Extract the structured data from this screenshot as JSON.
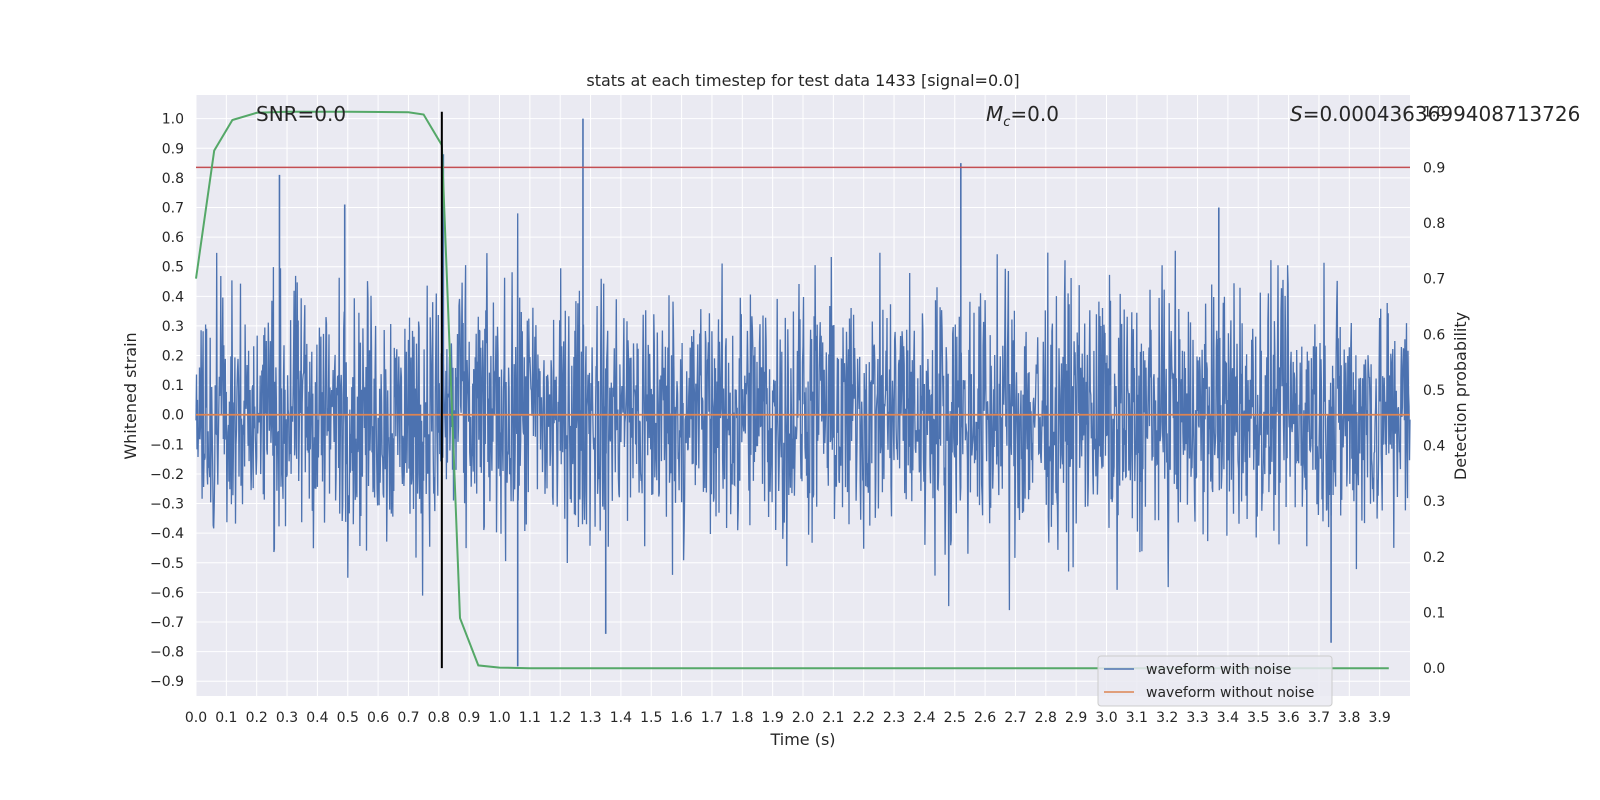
{
  "chart_data": {
    "type": "line",
    "title": "stats at each timestep for test data 1433 [signal=0.0]",
    "xlabel": "Time (s)",
    "ylabel": "Whitened strain",
    "y2label": "Detection probability",
    "xlim": [
      0.0,
      4.0
    ],
    "ylim": [
      -0.95,
      1.08
    ],
    "y2lim": [
      -0.05,
      1.03
    ],
    "x_ticks": [
      0.0,
      0.1,
      0.2,
      0.3,
      0.4,
      0.5,
      0.6,
      0.7,
      0.8,
      0.9,
      1.0,
      1.1,
      1.2,
      1.3,
      1.4,
      1.5,
      1.6,
      1.7,
      1.8,
      1.9,
      2.0,
      2.1,
      2.2,
      2.3,
      2.4,
      2.5,
      2.6,
      2.7,
      2.8,
      2.9,
      3.0,
      3.1,
      3.2,
      3.3,
      3.4,
      3.5,
      3.6,
      3.7,
      3.8,
      3.9
    ],
    "y_ticks": [
      1.0,
      0.9,
      0.8,
      0.7,
      0.6,
      0.5,
      0.4,
      0.3,
      0.2,
      0.1,
      0.0,
      -0.1,
      -0.2,
      -0.3,
      -0.4,
      -0.5,
      -0.6,
      -0.7,
      -0.8,
      -0.9
    ],
    "y2_ticks": [
      1.0,
      0.9,
      0.8,
      0.7,
      0.6,
      0.5,
      0.4,
      0.3,
      0.2,
      0.1,
      0.0
    ],
    "grid": true,
    "legend_position": "lower-right",
    "series": [
      {
        "name": "waveform with noise",
        "axis": "left",
        "color": "#4c72b0",
        "description_note": "dense noisy whitened strain, approx range -0.85 to 1.0",
        "peaks": [
          {
            "x": 0.275,
            "y": 0.81
          },
          {
            "x": 0.49,
            "y": 0.71
          },
          {
            "x": 0.815,
            "y": 0.88
          },
          {
            "x": 1.06,
            "y": -0.85
          },
          {
            "x": 1.275,
            "y": 1.0
          },
          {
            "x": 1.35,
            "y": -0.74
          },
          {
            "x": 2.52,
            "y": 0.85
          },
          {
            "x": 3.37,
            "y": 0.7
          },
          {
            "x": 3.74,
            "y": -0.77
          }
        ]
      },
      {
        "name": "waveform without noise",
        "axis": "left",
        "color": "#dd8452",
        "x": [
          0.0,
          4.0
        ],
        "y": [
          0.0,
          0.0
        ]
      },
      {
        "name": "",
        "axis": "right",
        "color": "#55a868",
        "x": [
          0.0,
          0.06,
          0.12,
          0.2,
          0.3,
          0.5,
          0.7,
          0.75,
          0.81,
          0.87,
          0.93,
          1.0,
          1.1,
          2.0,
          3.0,
          3.93
        ],
        "y": [
          0.7,
          0.93,
          0.985,
          0.998,
          1.0,
          1.0,
          0.999,
          0.995,
          0.94,
          0.09,
          0.005,
          0.001,
          0.0,
          0.0,
          0.0,
          0.0
        ]
      }
    ],
    "threshold_line": {
      "axis": "right",
      "y": 0.9,
      "color": "#c44e52"
    },
    "marker_line": {
      "x": 0.81,
      "color": "#000000"
    },
    "annotations": {
      "snr": "SNR=0.0",
      "mc_value": "=0.0",
      "s_value": "=0.0004363699408713726"
    },
    "colors": {
      "plot_bg": "#eaeaf2",
      "grid": "#ffffff"
    }
  }
}
